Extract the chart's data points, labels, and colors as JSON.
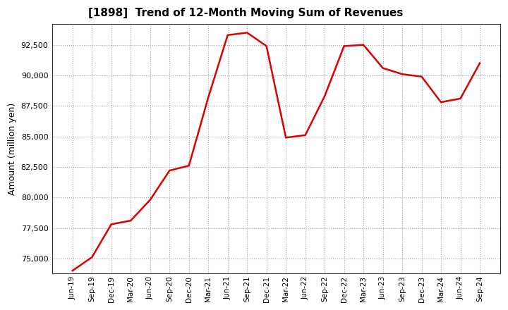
{
  "title": "[1898]  Trend of 12-Month Moving Sum of Revenues",
  "ylabel": "Amount (million yen)",
  "line_color": "#dd0000",
  "background_color": "#ffffff",
  "plot_bg_color": "#ffffff",
  "grid_color": "#999999",
  "ylim": [
    73800,
    94200
  ],
  "yticks": [
    75000,
    77500,
    80000,
    82500,
    85000,
    87500,
    90000,
    92500
  ],
  "x_labels": [
    "Jun-19",
    "Sep-19",
    "Dec-19",
    "Mar-20",
    "Jun-20",
    "Sep-20",
    "Dec-20",
    "Mar-21",
    "Jun-21",
    "Sep-21",
    "Dec-21",
    "Mar-22",
    "Jun-22",
    "Sep-22",
    "Dec-22",
    "Mar-23",
    "Jun-23",
    "Sep-23",
    "Dec-23",
    "Mar-24",
    "Jun-24",
    "Sep-24"
  ],
  "values": [
    74000,
    75100,
    77800,
    78100,
    79800,
    82200,
    82600,
    88200,
    93300,
    93500,
    92400,
    84900,
    85100,
    88300,
    92400,
    92500,
    90600,
    90100,
    89900,
    87800,
    88100,
    91000
  ]
}
